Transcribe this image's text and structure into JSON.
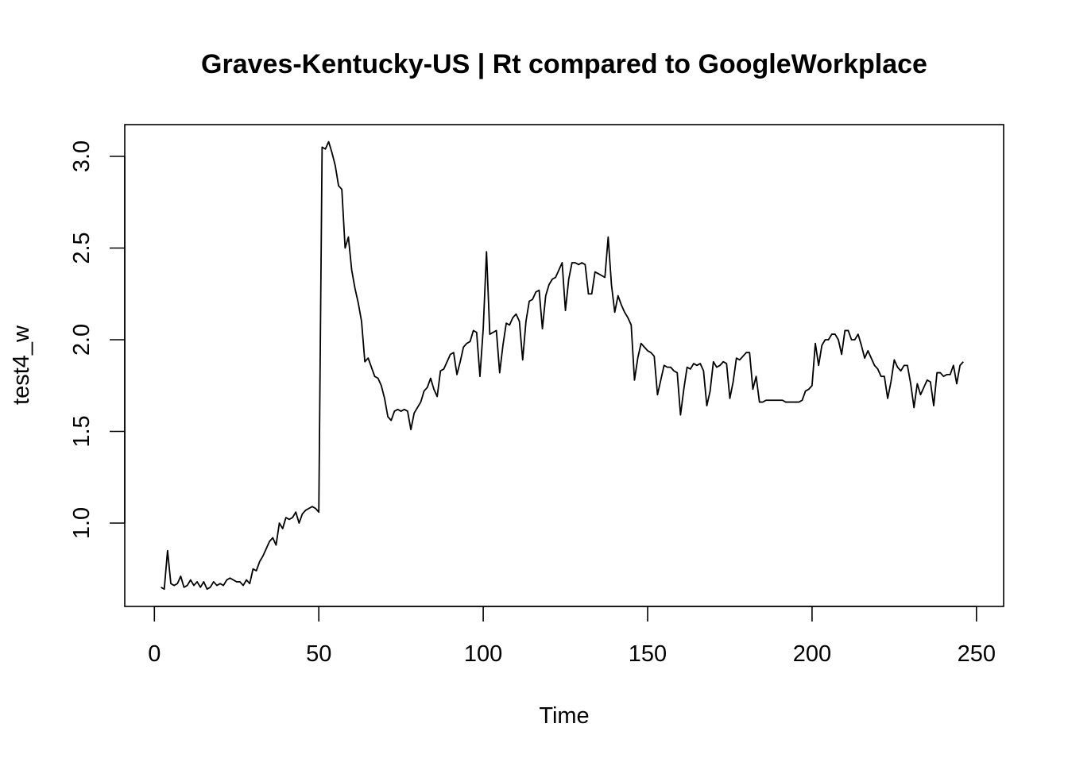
{
  "chart_data": {
    "type": "line",
    "title": "Graves-Kentucky-US | Rt compared to GoogleWorkplace",
    "xlabel": "Time",
    "ylabel": "test4_w",
    "xlim": [
      1,
      248
    ],
    "ylim": [
      0.64,
      3.08
    ],
    "x_ticks": [
      0,
      50,
      100,
      150,
      200,
      250
    ],
    "y_ticks": [
      1.0,
      1.5,
      2.0,
      2.5,
      3.0
    ],
    "x_tick_labels": [
      "0",
      "50",
      "100",
      "150",
      "200",
      "250"
    ],
    "y_tick_labels": [
      "1.0",
      "1.5",
      "2.0",
      "2.5",
      "3.0"
    ],
    "grid": false,
    "legend": "none",
    "series": [
      {
        "x_start": 2,
        "values": [
          0.65,
          0.64,
          0.85,
          0.67,
          0.66,
          0.67,
          0.71,
          0.65,
          0.66,
          0.69,
          0.66,
          0.68,
          0.65,
          0.68,
          0.64,
          0.65,
          0.68,
          0.66,
          0.67,
          0.66,
          0.69,
          0.7,
          0.69,
          0.68,
          0.68,
          0.66,
          0.69,
          0.67,
          0.75,
          0.74,
          0.79,
          0.82,
          0.86,
          0.9,
          0.92,
          0.88,
          1.0,
          0.97,
          1.03,
          1.02,
          1.03,
          1.06,
          1.0,
          1.05,
          1.07,
          1.08,
          1.09,
          1.08,
          1.06,
          3.05,
          3.04,
          3.08,
          3.02,
          2.95,
          2.84,
          2.82,
          2.5,
          2.56,
          2.38,
          2.28,
          2.2,
          2.1,
          1.88,
          1.9,
          1.85,
          1.8,
          1.79,
          1.75,
          1.68,
          1.58,
          1.56,
          1.61,
          1.62,
          1.61,
          1.62,
          1.61,
          1.51,
          1.6,
          1.63,
          1.66,
          1.72,
          1.74,
          1.79,
          1.73,
          1.69,
          1.83,
          1.84,
          1.88,
          1.92,
          1.93,
          1.81,
          1.88,
          1.96,
          1.98,
          1.99,
          2.05,
          2.04,
          1.8,
          2.06,
          2.48,
          2.03,
          2.04,
          2.05,
          1.82,
          1.97,
          2.09,
          2.08,
          2.12,
          2.14,
          2.1,
          1.89,
          2.1,
          2.21,
          2.22,
          2.26,
          2.27,
          2.06,
          2.24,
          2.3,
          2.33,
          2.34,
          2.38,
          2.42,
          2.16,
          2.33,
          2.42,
          2.42,
          2.41,
          2.42,
          2.41,
          2.25,
          2.25,
          2.37,
          2.36,
          2.35,
          2.34,
          2.56,
          2.3,
          2.15,
          2.24,
          2.19,
          2.15,
          2.12,
          2.08,
          1.78,
          1.9,
          1.98,
          1.96,
          1.94,
          1.93,
          1.91,
          1.7,
          1.78,
          1.86,
          1.85,
          1.85,
          1.83,
          1.82,
          1.59,
          1.73,
          1.85,
          1.84,
          1.87,
          1.86,
          1.87,
          1.83,
          1.64,
          1.72,
          1.88,
          1.85,
          1.86,
          1.88,
          1.87,
          1.68,
          1.77,
          1.9,
          1.89,
          1.91,
          1.93,
          1.93,
          1.73,
          1.8,
          1.66,
          1.66,
          1.67,
          1.67,
          1.67,
          1.67,
          1.67,
          1.67,
          1.66,
          1.66,
          1.66,
          1.66,
          1.66,
          1.67,
          1.72,
          1.73,
          1.75,
          1.98,
          1.86,
          1.97,
          2.0,
          2.0,
          2.03,
          2.03,
          2.0,
          1.92,
          2.05,
          2.05,
          2.0,
          2.0,
          2.03,
          1.97,
          1.9,
          1.94,
          1.9,
          1.86,
          1.84,
          1.8,
          1.8,
          1.68,
          1.77,
          1.89,
          1.85,
          1.83,
          1.86,
          1.86,
          1.76,
          1.63,
          1.76,
          1.7,
          1.74,
          1.78,
          1.77,
          1.64,
          1.82,
          1.82,
          1.8,
          1.81,
          1.81,
          1.86,
          1.76,
          1.86,
          1.88
        ]
      }
    ]
  }
}
